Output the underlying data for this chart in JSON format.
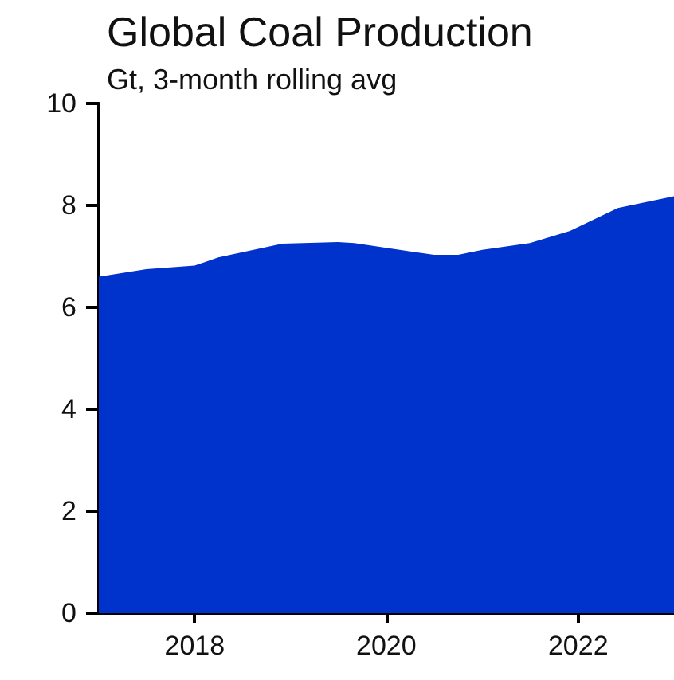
{
  "chart_data": {
    "type": "area",
    "title": "Global Coal Production",
    "subtitle": "Gt, 3-month rolling avg",
    "x": [
      "2017-01",
      "2017-07",
      "2018-01",
      "2018-04",
      "2018-12",
      "2019-07",
      "2019-09",
      "2020-07",
      "2020-10",
      "2021-01",
      "2021-07",
      "2021-12",
      "2022-06",
      "2023-01"
    ],
    "series": [
      {
        "color": "#0033cc",
        "values": [
          6.6,
          6.75,
          6.82,
          6.98,
          7.25,
          7.28,
          7.26,
          7.03,
          7.03,
          7.13,
          7.26,
          7.5,
          7.95,
          8.18
        ]
      }
    ],
    "xlim": [
      "2017-01",
      "2023-01"
    ],
    "xticks": [
      "2018",
      "2020",
      "2022"
    ],
    "ylim": [
      0,
      10
    ],
    "yticks": [
      0,
      2,
      4,
      6,
      8,
      10
    ],
    "grid": false
  }
}
